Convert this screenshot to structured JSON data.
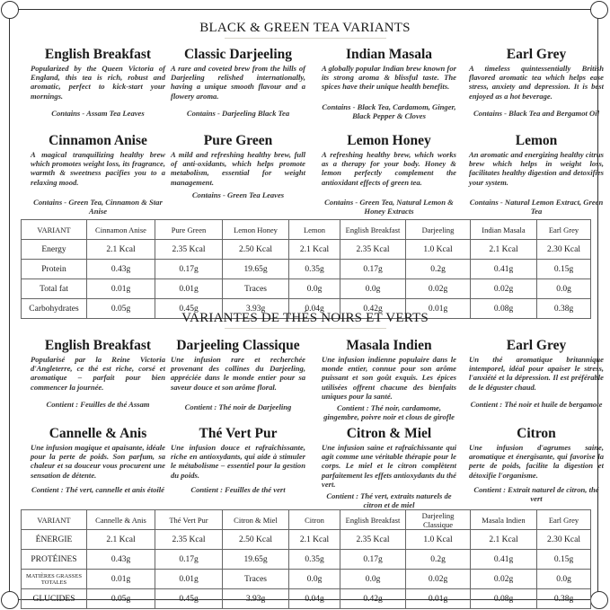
{
  "english": {
    "title": "BLACK & GREEN TEA VARIANTS",
    "teas": [
      {
        "name": "English Breakfast",
        "desc": "Popularized by the Queen Victoria of England, this tea is rich, robust and aromatic, perfect to kick-start your mornings.",
        "contains": "Contains - Assam Tea Leaves"
      },
      {
        "name": "Classic Darjeeling",
        "desc": "A rare and coveted brew from the hills of Darjeeling relished internationally, having a unique smooth flavour and a flowery aroma.",
        "contains": "Contains - Darjeeling Black Tea"
      },
      {
        "name": "Indian Masala",
        "desc": "A globally popular Indian brew known for its strong aroma & blissful taste. The spices have their unique health benefits.",
        "contains": "Contains - Black Tea, Cardamom, Ginger, Black Pepper & Cloves"
      },
      {
        "name": "Earl Grey",
        "desc": "A timeless quintessentially British flavored aromatic tea which helps ease stress, anxiety and depression. It is best enjoyed as a hot beverage.",
        "contains": "Contains - Black Tea and Bergamot Oil"
      },
      {
        "name": "Cinnamon Anise",
        "desc": "A magical tranquilizing healthy brew which promotes weight loss, its fragrance, warmth & sweetness pacifies you to a relaxing mood.",
        "contains": "Contains - Green Tea, Cinnamon & Star Anise"
      },
      {
        "name": "Pure Green",
        "desc": "A mild and refreshing healthy brew, full of anti-oxidants, which helps promote metabolism, essential for weight management.",
        "contains": "Contains - Green Tea Leaves"
      },
      {
        "name": "Lemon Honey",
        "desc": "A refreshing healthy brew, which works as a therapy for your body. Honey & lemon perfectly complement the antioxidant effects of green tea.",
        "contains": "Contains - Green Tea, Natural Lemon & Honey Extracts"
      },
      {
        "name": "Lemon",
        "desc": "An aromatic and energizing healthy citrus brew which helps in weight loss, facilitates healthy digestion and detoxifies your system.",
        "contains": "Contains - Natural Lemon Extract, Green Tea"
      }
    ],
    "table": {
      "header": [
        "VARIANT",
        "Cinnamon Anise",
        "Pure Green",
        "Lemon Honey",
        "Lemon",
        "English Breakfast",
        "Darjeeling",
        "Indian Masala",
        "Earl Grey"
      ],
      "rows": [
        [
          "Energy",
          "2.1 Kcal",
          "2.35 Kcal",
          "2.50 Kcal",
          "2.1 Kcal",
          "2.35 Kcal",
          "1.0 Kcal",
          "2.1 Kcal",
          "2.30 Kcal"
        ],
        [
          "Protein",
          "0.43g",
          "0.17g",
          "19.65g",
          "0.35g",
          "0.17g",
          "0.2g",
          "0.41g",
          "0.15g"
        ],
        [
          "Total fat",
          "0.01g",
          "0.01g",
          "Traces",
          "0.0g",
          "0.0g",
          "0.02g",
          "0.02g",
          "0.0g"
        ],
        [
          "Carbohydrates",
          "0.05g",
          "0.45g",
          "3.93g",
          "0.04g",
          "0.42g",
          "0.01g",
          "0.08g",
          "0.38g"
        ]
      ]
    }
  },
  "french": {
    "title": "VARIANTES DE THÉS NOIRS ET VERTS",
    "teas": [
      {
        "name": "English Breakfast",
        "desc": "Popularisé par la Reine Victoria d'Angleterre, ce thé est riche, corsé et aromatique – parfait pour bien commencer la journée.",
        "contains": "Contient : Feuilles de thé Assam"
      },
      {
        "name": "Darjeeling Classique",
        "desc": "Une infusion rare et recherchée provenant des collines du Darjeeling, appréciée dans le monde entier pour sa saveur douce et son arôme floral.",
        "contains": "Contient : Thé noir de Darjeeling"
      },
      {
        "name": "Masala Indien",
        "desc": "Une infusion indienne populaire dans le monde entier, connue pour son arôme puissant et son goût exquis. Les épices utilisées offrent chacune des bienfaits uniques pour la santé.",
        "contains": "Contient : Thé noir, cardamome, gingembre, poivre noir et clous de girofle"
      },
      {
        "name": "Earl Grey",
        "desc": "Un thé aromatique britannique intemporel, idéal pour apaiser le stress, l'anxiété et la dépression. Il est préférable de le déguster chaud.",
        "contains": "Contient : Thé noir et huile de bergamote"
      },
      {
        "name": "Cannelle & Anis",
        "desc": "Une infusion magique et apaisante, idéale pour la perte de poids. Son parfum, sa chaleur et sa douceur vous procurent une sensation de détente.",
        "contains": "Contient : Thé vert, cannelle et anis étoilé"
      },
      {
        "name": "Thé Vert Pur",
        "desc": "Une infusion douce et rafraîchissante, riche en antioxydants, qui aide à stimuler le métabolisme – essentiel pour la gestion du poids.",
        "contains": "Contient : Feuilles de thé vert"
      },
      {
        "name": "Citron & Miel",
        "desc": "Une infusion saine et rafraîchissante qui agit comme une véritable thérapie pour le corps. Le miel et le citron complètent parfaitement les effets antioxydants du thé vert.",
        "contains": "Contient : Thé vert, extraits naturels de citron et de miel"
      },
      {
        "name": "Citron",
        "desc": "Une infusion d'agrumes saine, aromatique et énergisante, qui favorise la perte de poids, facilite la digestion et détoxifie l'organisme.",
        "contains": "Contient : Extrait naturel de citron, thé vert"
      }
    ],
    "table": {
      "header": [
        "VARIANT",
        "Cannelle & Anis",
        "Thé Vert Pur",
        "Citron & Miel",
        "Citron",
        "English Breakfast",
        "Darjeeling Classique",
        "Masala Indien",
        "Earl Grey"
      ],
      "rows": [
        [
          "ÉNERGIE",
          "2.1 Kcal",
          "2.35 Kcal",
          "2.50 Kcal",
          "2.1 Kcal",
          "2.35 Kcal",
          "1.0 Kcal",
          "2.1 Kcal",
          "2.30 Kcal"
        ],
        [
          "PROTÉINES",
          "0.43g",
          "0.17g",
          "19.65g",
          "0.35g",
          "0.17g",
          "0.2g",
          "0.41g",
          "0.15g"
        ],
        [
          "MATIÈRES GRASSES TOTALES",
          "0.01g",
          "0.01g",
          "Traces",
          "0.0g",
          "0.0g",
          "0.02g",
          "0.02g",
          "0.0g"
        ],
        [
          "GLUCIDES",
          "0.05g",
          "0.45g",
          "3.93g",
          "0.04g",
          "0.42g",
          "0.01g",
          "0.08g",
          "0.38g"
        ]
      ]
    }
  }
}
